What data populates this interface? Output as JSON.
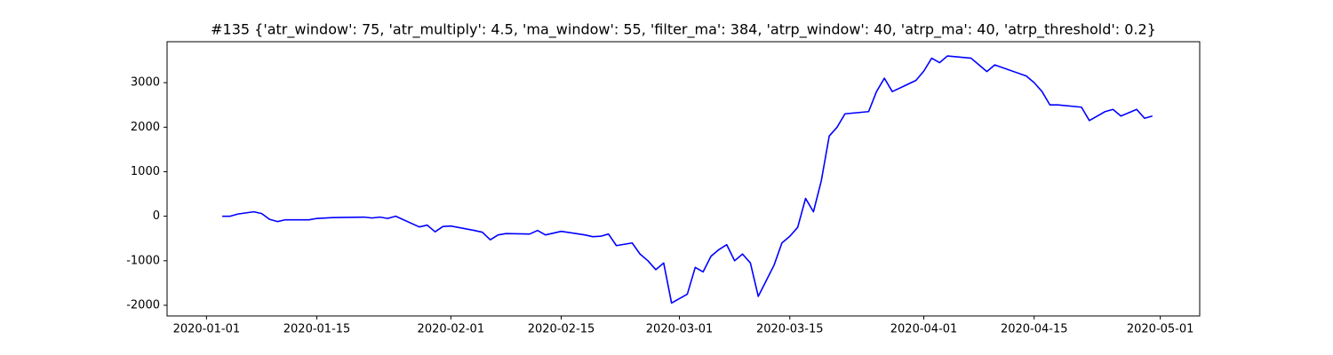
{
  "chart_data": {
    "type": "line",
    "title": "#135 {'atr_window': 75, 'atr_multiply': 4.5, 'ma_window': 55, 'filter_ma': 384, 'atrp_window': 40, 'atrp_ma': 40, 'atrp_threshold': 0.2}",
    "x": [
      "2020-01-03",
      "2020-01-04",
      "2020-01-05",
      "2020-01-07",
      "2020-01-08",
      "2020-01-09",
      "2020-01-10",
      "2020-01-11",
      "2020-01-14",
      "2020-01-15",
      "2020-01-16",
      "2020-01-17",
      "2020-01-21",
      "2020-01-22",
      "2020-01-23",
      "2020-01-24",
      "2020-01-25",
      "2020-01-28",
      "2020-01-29",
      "2020-01-30",
      "2020-01-31",
      "2020-02-01",
      "2020-02-04",
      "2020-02-05",
      "2020-02-06",
      "2020-02-07",
      "2020-02-08",
      "2020-02-11",
      "2020-02-12",
      "2020-02-13",
      "2020-02-14",
      "2020-02-15",
      "2020-02-18",
      "2020-02-19",
      "2020-02-20",
      "2020-02-21",
      "2020-02-22",
      "2020-02-24",
      "2020-02-25",
      "2020-02-26",
      "2020-02-27",
      "2020-02-28",
      "2020-02-29",
      "2020-03-02",
      "2020-03-03",
      "2020-03-04",
      "2020-03-05",
      "2020-03-06",
      "2020-03-07",
      "2020-03-08",
      "2020-03-09",
      "2020-03-10",
      "2020-03-11",
      "2020-03-12",
      "2020-03-13",
      "2020-03-14",
      "2020-03-15",
      "2020-03-16",
      "2020-03-17",
      "2020-03-18",
      "2020-03-19",
      "2020-03-20",
      "2020-03-21",
      "2020-03-22",
      "2020-03-25",
      "2020-03-26",
      "2020-03-27",
      "2020-03-28",
      "2020-03-31",
      "2020-04-01",
      "2020-04-02",
      "2020-04-03",
      "2020-04-04",
      "2020-04-07",
      "2020-04-08",
      "2020-04-09",
      "2020-04-10",
      "2020-04-14",
      "2020-04-15",
      "2020-04-16",
      "2020-04-17",
      "2020-04-18",
      "2020-04-21",
      "2020-04-22",
      "2020-04-23",
      "2020-04-24",
      "2020-04-25",
      "2020-04-26",
      "2020-04-28",
      "2020-04-29",
      "2020-04-30"
    ],
    "values": [
      0,
      0,
      50,
      100,
      60,
      -70,
      -120,
      -80,
      -80,
      -50,
      -40,
      -30,
      -20,
      -40,
      -20,
      -50,
      0,
      -240,
      -200,
      -350,
      -230,
      -220,
      -320,
      -360,
      -530,
      -420,
      -390,
      -400,
      -320,
      -420,
      -380,
      -340,
      -420,
      -460,
      -450,
      -400,
      -660,
      -600,
      -850,
      -1000,
      -1200,
      -1050,
      -1950,
      -1750,
      -1150,
      -1250,
      -900,
      -750,
      -640,
      -1000,
      -850,
      -1050,
      -1800,
      -1450,
      -1100,
      -600,
      -450,
      -250,
      400,
      100,
      800,
      1800,
      2000,
      2300,
      2350,
      2800,
      3100,
      2800,
      3050,
      3260,
      3550,
      3450,
      3600,
      3550,
      3400,
      3250,
      3400,
      3150,
      3000,
      2800,
      2500,
      2500,
      2450,
      2150,
      2250,
      2350,
      2400,
      2250,
      2400,
      2200,
      2250
    ],
    "color": "#0000ff",
    "xlim": [
      "2019-12-27",
      "2020-05-06"
    ],
    "xticks": [
      "2020-01-01",
      "2020-01-15",
      "2020-02-01",
      "2020-02-15",
      "2020-03-01",
      "2020-03-15",
      "2020-04-01",
      "2020-04-15",
      "2020-05-01"
    ],
    "ylim": [
      -2240,
      3920
    ],
    "yticks": [
      -2000,
      -1000,
      0,
      1000,
      2000,
      3000
    ]
  }
}
